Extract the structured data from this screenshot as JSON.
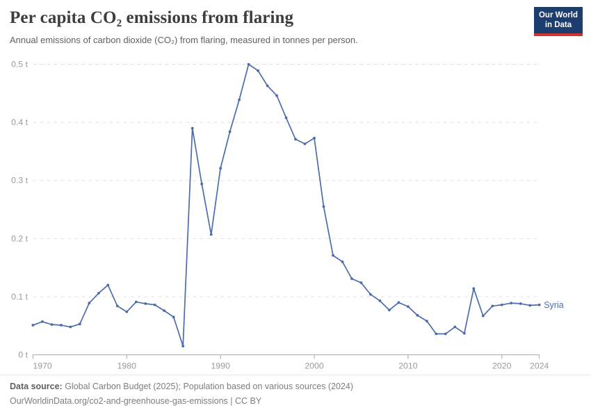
{
  "header": {
    "title": "Per capita CO₂ emissions from flaring",
    "subtitle": "Annual emissions of carbon dioxide (CO₂) from flaring, measured in tonnes per person."
  },
  "logo": {
    "line1": "Our World",
    "line2": "in Data",
    "bg_color": "#1d3d6e",
    "bar_color": "#cc3530"
  },
  "chart_data": {
    "type": "line",
    "title": "Per capita CO₂ emissions from flaring",
    "xlabel": "",
    "ylabel": "tonnes per person",
    "ylim": [
      0,
      0.5
    ],
    "grid": true,
    "grid_color": "#e0e0e0",
    "axis_color": "#a8a8a8",
    "tick_label_color": "#9a9a9a",
    "y_ticks": [
      0,
      0.1,
      0.2,
      0.3,
      0.4,
      0.5
    ],
    "y_tick_labels": [
      "0 t",
      "0.1 t",
      "0.2 t",
      "0.3 t",
      "0.4 t",
      "0.5 t"
    ],
    "x_ticks": [
      1970,
      1980,
      1990,
      2000,
      2010,
      2020,
      2024
    ],
    "legend_position": "end-of-line",
    "series": [
      {
        "name": "Syria",
        "color": "#4c6bac",
        "x": [
          1970,
          1971,
          1972,
          1973,
          1974,
          1975,
          1976,
          1977,
          1978,
          1979,
          1980,
          1981,
          1982,
          1983,
          1984,
          1985,
          1986,
          1987,
          1988,
          1989,
          1990,
          1991,
          1992,
          1993,
          1994,
          1995,
          1996,
          1997,
          1998,
          1999,
          2000,
          2001,
          2002,
          2003,
          2004,
          2005,
          2006,
          2007,
          2008,
          2009,
          2010,
          2011,
          2012,
          2013,
          2014,
          2015,
          2016,
          2017,
          2018,
          2019,
          2020,
          2021,
          2022,
          2023,
          2024
        ],
        "values": [
          0.051,
          0.057,
          0.052,
          0.051,
          0.048,
          0.053,
          0.089,
          0.106,
          0.12,
          0.084,
          0.074,
          0.091,
          0.088,
          0.086,
          0.076,
          0.065,
          0.015,
          0.39,
          0.294,
          0.207,
          0.321,
          0.384,
          0.439,
          0.5,
          0.489,
          0.463,
          0.446,
          0.408,
          0.371,
          0.363,
          0.373,
          0.255,
          0.171,
          0.16,
          0.131,
          0.124,
          0.104,
          0.093,
          0.077,
          0.09,
          0.083,
          0.068,
          0.058,
          0.036,
          0.036,
          0.048,
          0.037,
          0.114,
          0.067,
          0.084,
          0.086,
          0.089,
          0.088,
          0.085,
          0.086
        ]
      }
    ]
  },
  "footer": {
    "source_label": "Data source:",
    "source_text": " Global Carbon Budget (2025); Population based on various sources (2024)",
    "link": "OurWorldinData.org/co2-and-greenhouse-gas-emissions",
    "separator": " | ",
    "license": "CC BY"
  }
}
